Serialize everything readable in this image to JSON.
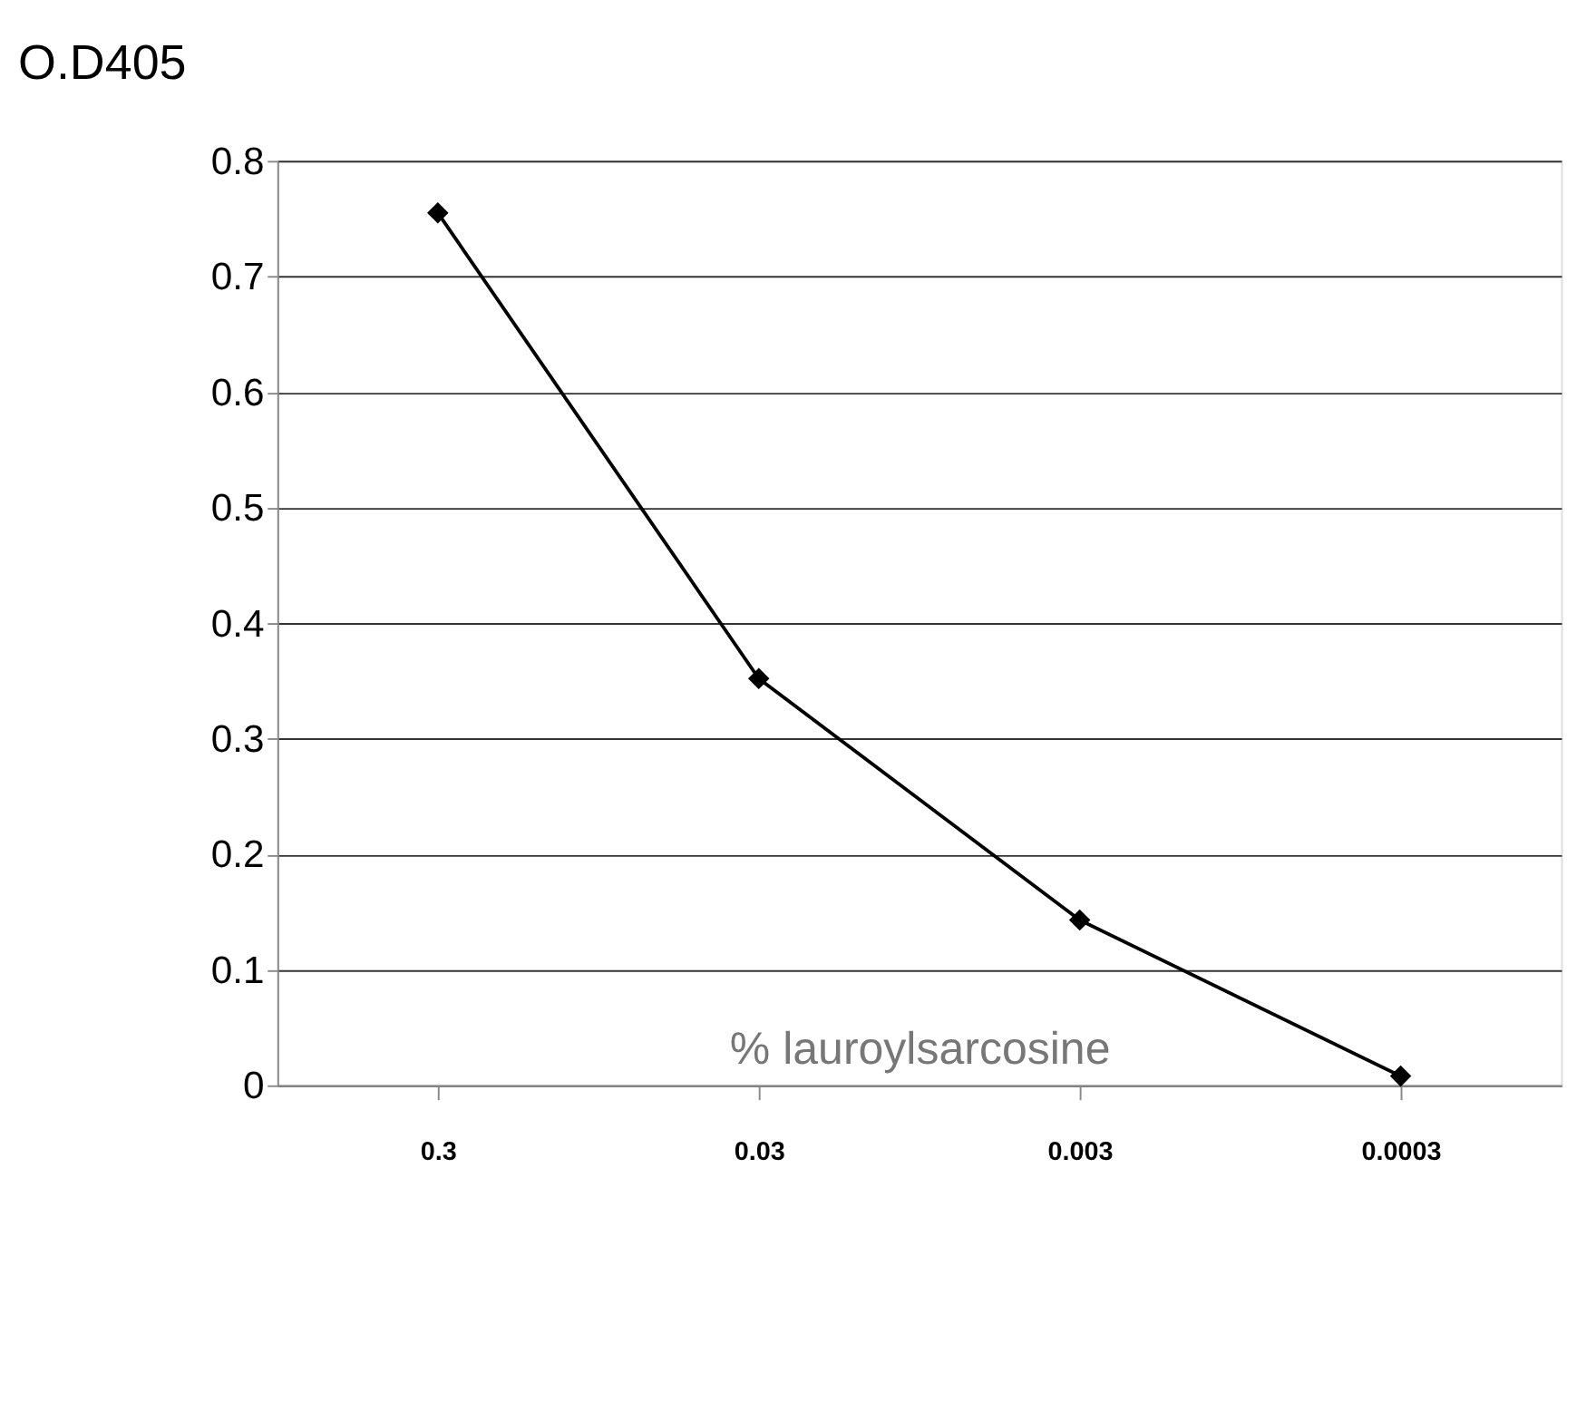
{
  "chart_data": {
    "type": "line",
    "title": "O.D405",
    "xlabel": "% lauroylsarcosine",
    "categories": [
      "0.3",
      "0.03",
      "0.003",
      "0.0003"
    ],
    "series": [
      {
        "color": "#000000",
        "values": [
          0.755,
          0.352,
          0.143,
          0.008
        ]
      }
    ],
    "ylim": [
      0,
      0.8
    ],
    "yticks": [
      0,
      0.1,
      0.2,
      0.3,
      0.4,
      0.5,
      0.6,
      0.7,
      0.8
    ],
    "grid": "y",
    "marker": "diamond",
    "line_style": "solid",
    "legend": false
  }
}
